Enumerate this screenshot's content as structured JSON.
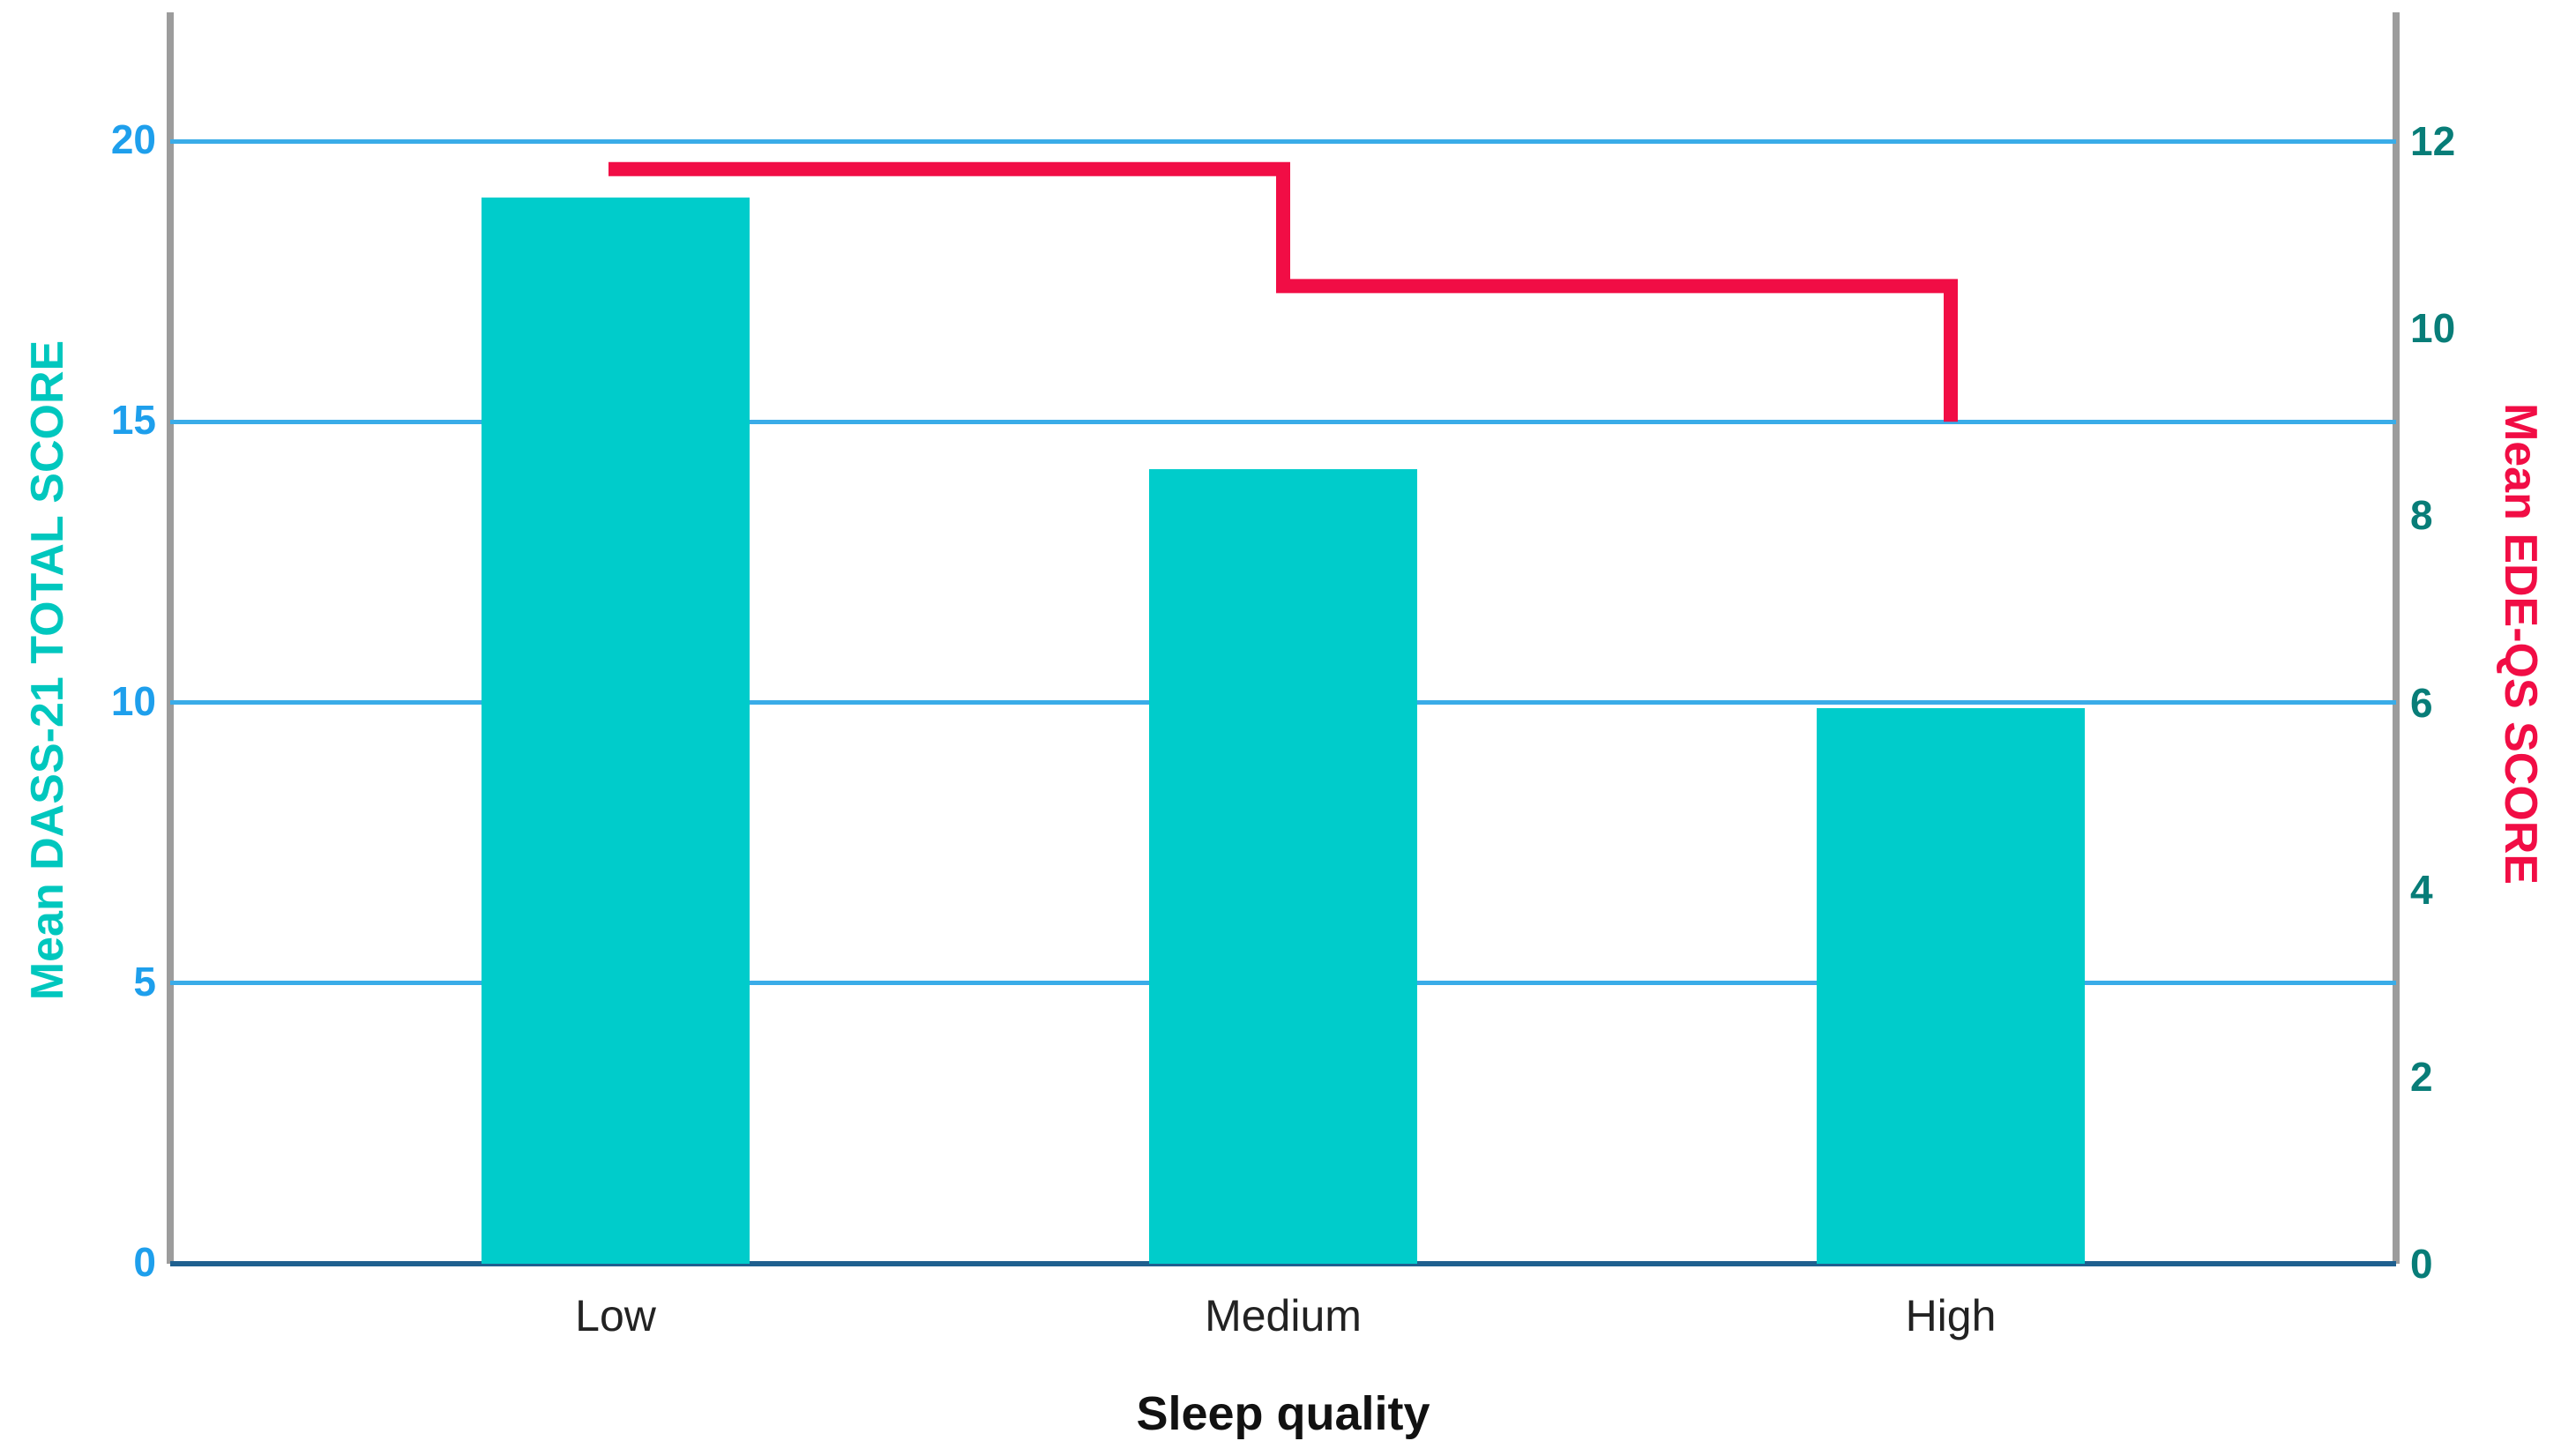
{
  "chart_data": {
    "type": "bar",
    "subtype": "dual-axis bar chart with step line overlay",
    "categories": [
      "Low",
      "Medium",
      "High"
    ],
    "series": [
      {
        "name": "Mean DASS-21 TOTAL SCORE",
        "type": "bar",
        "axis": "left",
        "color": "#00CCCB",
        "values": [
          19.0,
          14.15,
          9.9
        ]
      },
      {
        "name": "Mean EDE-QS SCORE",
        "type": "step-line",
        "axis": "right",
        "color": "#F10D45",
        "values": [
          11.7,
          10.45,
          9.0
        ]
      }
    ],
    "title": "",
    "xlabel": "Sleep quality",
    "left_axis": {
      "title": "Mean DASS-21 TOTAL SCORE",
      "ticks": [
        0,
        5,
        10,
        15,
        20
      ],
      "range": [
        0,
        22.3
      ],
      "title_color": "#00C7BE",
      "tick_color": "#1E9FEC"
    },
    "right_axis": {
      "title": "Mean EDE-QS SCORE",
      "ticks": [
        0,
        2,
        4,
        6,
        8,
        10,
        12
      ],
      "range": [
        0,
        13.4
      ],
      "title_color": "#F10D45",
      "tick_color": "#087D78"
    },
    "grid": true,
    "legend_position": "none",
    "colors": {
      "gridline": "#3AACE8",
      "baseline": "#1F608F",
      "axis_line": "#9C9C9C",
      "bar_fill": "#00CCCB",
      "line_stroke": "#F10D45",
      "category_label": "#222222",
      "background": "#FFFFFF"
    }
  }
}
